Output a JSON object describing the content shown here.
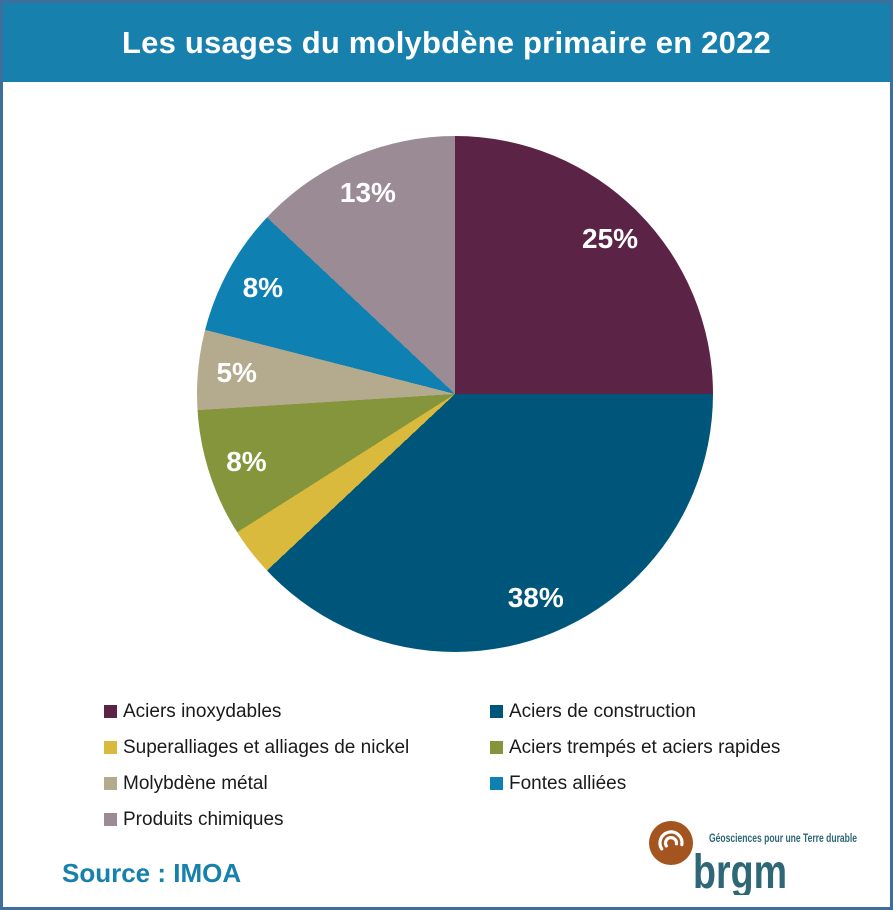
{
  "header": {
    "title": "Les usages du molybdène primaire en 2022",
    "background": "#1780ad"
  },
  "chart_data": {
    "type": "pie",
    "title": "Les usages du molybdène primaire en 2022",
    "start_angle_deg": 0,
    "direction": "clockwise",
    "slices": [
      {
        "label": "Aciers inoxydables",
        "value": 25,
        "color": "#5b2346",
        "data_label": "25%"
      },
      {
        "label": "Aciers de construction",
        "value": 38,
        "color": "#00567a",
        "data_label": "38%"
      },
      {
        "label": "Superalliages et alliages de nickel",
        "value": 3,
        "color": "#d9ba3c",
        "data_label": ""
      },
      {
        "label": "Aciers trempés et aciers rapides",
        "value": 8,
        "color": "#84953c",
        "data_label": "8%"
      },
      {
        "label": "Molybdène métal",
        "value": 5,
        "color": "#b4aa8e",
        "data_label": "5%"
      },
      {
        "label": "Fontes alliées",
        "value": 8,
        "color": "#0e81b2",
        "data_label": "8%"
      },
      {
        "label": "Produits chimiques",
        "value": 13,
        "color": "#9a8b94",
        "data_label": "13%"
      }
    ],
    "legend_position": "bottom",
    "legend_columns": [
      [
        0,
        2,
        4,
        6
      ],
      [
        1,
        3,
        5
      ]
    ]
  },
  "source": {
    "label": "Source : IMOA",
    "color": "#1780ad"
  },
  "logo": {
    "brand": "brgm",
    "tagline": "Géosciences pour une Terre durable",
    "circle_color": "#a4541f",
    "text_color": "#2e6775"
  },
  "frame": {
    "border_color": "#3e6f9c"
  }
}
